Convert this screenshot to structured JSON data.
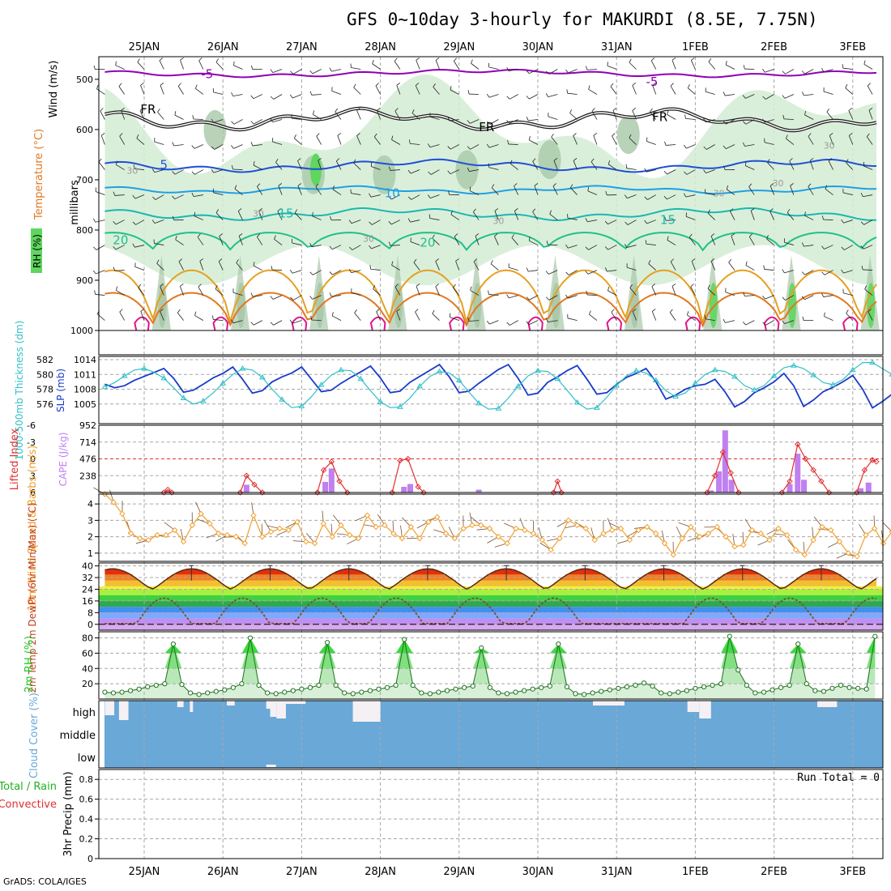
{
  "title": "GFS 0~10day 3-hourly for MAKURDI (8.5E, 7.75N)",
  "credit": "GrADS: COLA/IGES",
  "dates": [
    "25JAN",
    "26JAN",
    "27JAN",
    "28JAN",
    "29JAN",
    "30JAN",
    "31JAN",
    "1FEB",
    "2FEB",
    "3FEB"
  ],
  "colors": {
    "grid": "#a8a8a8",
    "rh_fill": "#d4ecd4",
    "rh_mid": "#a8c8a8",
    "rh_high": "#5fd65f",
    "temp_m5": "#8f00b6",
    "temp_fr": "#1a1a1a",
    "temp_5": "#1e50d6",
    "temp_10": "#1ea0e6",
    "temp_15": "#1ab8b0",
    "temp_20": "#20c08a",
    "temp_25": "#e6a020",
    "temp_30": "#e07820",
    "temp_35": "#e0148c",
    "slp": "#1a3cc8",
    "thickness": "#30c0c8",
    "cape": "#c080f0",
    "lifted": "#e03030",
    "wind10": "#f0a030",
    "rh2m": "#20c820",
    "cloud": "#6aa8d8",
    "dewpt": "#7a5030"
  },
  "chart_data": [
    {
      "panel": "upper-air",
      "type": "line",
      "ylabel_left": "RH (%)",
      "ylabel_mid": "Temperature (°C)",
      "ylabel_wind": "Wind (m/s)",
      "ylabel_units": "millibars",
      "y_ticks": [
        500,
        600,
        700,
        800,
        900,
        1000
      ],
      "ylim": [
        455,
        1000
      ],
      "contour_labels": [
        {
          "text": "-5",
          "x": 0.8,
          "y": 490
        },
        {
          "text": "-5",
          "x": 6.45,
          "y": 505
        },
        {
          "text": "FR",
          "x": 0.05,
          "y": 560
        },
        {
          "text": "FR",
          "x": 4.35,
          "y": 595
        },
        {
          "text": "FR",
          "x": 6.55,
          "y": 575
        },
        {
          "text": "5",
          "x": 0.25,
          "y": 670
        },
        {
          "text": "10",
          "x": 3.15,
          "y": 727
        },
        {
          "text": "15",
          "x": 1.8,
          "y": 767
        },
        {
          "text": "15",
          "x": 6.65,
          "y": 780
        },
        {
          "text": "20",
          "x": -0.3,
          "y": 820
        },
        {
          "text": "20",
          "x": 3.6,
          "y": 825
        },
        {
          "text": "30",
          "x": -0.15,
          "y": 680
        },
        {
          "text": "30",
          "x": 1.45,
          "y": 765
        },
        {
          "text": "30",
          "x": 2.85,
          "y": 815
        },
        {
          "text": "30",
          "x": 4.5,
          "y": 780
        },
        {
          "text": "30",
          "x": 7.3,
          "y": 725
        },
        {
          "text": "30",
          "x": 8.05,
          "y": 705
        },
        {
          "text": "30",
          "x": 8.7,
          "y": 630
        }
      ]
    },
    {
      "panel": "slp-thickness",
      "type": "line",
      "ylabel_left": "1000-500mb Thickness (dm)",
      "ylabel_right": "SLP (mb)",
      "left_ticks": [
        576,
        578,
        580,
        582
      ],
      "right_ticks": [
        1005,
        1008,
        1011,
        1014
      ],
      "slp_range": [
        1002,
        1014
      ],
      "slp": [
        1009,
        1008.3,
        1008.7,
        1009.8,
        1010.6,
        1011.4,
        1012.2,
        1010.2,
        1007.4,
        1007.8,
        1009,
        1010.3,
        1011.2,
        1012.5,
        1010,
        1007.2,
        1007.7,
        1009.5,
        1010.5,
        1011.3,
        1012.5,
        1010,
        1007.5,
        1007.8,
        1009.2,
        1010.4,
        1011.5,
        1012.7,
        1010.3,
        1007.3,
        1007.6,
        1009.4,
        1010.6,
        1011.8,
        1013,
        1010.5,
        1007.3,
        1007.6,
        1009.2,
        1010.6,
        1012,
        1013,
        1010.2,
        1006.8,
        1007.2,
        1009.4,
        1010.5,
        1011.8,
        1012.8,
        1010,
        1007,
        1007.3,
        1009,
        1010.4,
        1011.2,
        1012.2,
        1009.5,
        1006,
        1006.8,
        1008,
        1008.7,
        1009,
        1010,
        1007.5,
        1004.4,
        1005.5,
        1007.3,
        1008.3,
        1009.5,
        1011.2,
        1008.7,
        1004.5,
        1005.8,
        1007.5,
        1008.4,
        1009.5,
        1010.8,
        1008,
        1004.2,
        1005.5,
        1007,
        1009
      ],
      "thickness": [
        578.3,
        578.9,
        579.8,
        580.6,
        580.8,
        580.3,
        579.5,
        578.2,
        576.8,
        576.0,
        576.4,
        577.5,
        578.8,
        580.0,
        580.8,
        580.6,
        579.6,
        578.0,
        576.6,
        575.5,
        575.7,
        577.0,
        578.6,
        579.9,
        580.6,
        580.5,
        579.4,
        577.8,
        576.3,
        575.5,
        575.6,
        576.8,
        578.4,
        579.7,
        580.4,
        580.2,
        579.2,
        577.6,
        576.1,
        575.3,
        575.4,
        576.8,
        578.4,
        579.8,
        580.5,
        580.4,
        579.4,
        577.8,
        576.2,
        575.3,
        575.5,
        576.9,
        578.5,
        579.8,
        580.5,
        580.2,
        579.2,
        577.8,
        577.0,
        577.5,
        578.8,
        580.0,
        580.6,
        580.4,
        579.7,
        578.5,
        577.9,
        578.5,
        579.8,
        580.9,
        581.2,
        580.8,
        579.9,
        578.9,
        578.6,
        579.3,
        580.6,
        581.6,
        581.6,
        580.8,
        580.0,
        579.5
      ]
    },
    {
      "panel": "cape-lifted",
      "type": "bar",
      "ylabel_left": "Lifted Index",
      "ylabel_right": "CAPE (J/kg)",
      "li_ticks": [
        -6,
        -3,
        0,
        3,
        6
      ],
      "li_range": [
        -6,
        6
      ],
      "cape_ticks": [
        238,
        476,
        714,
        952
      ],
      "cape_range": [
        0,
        952
      ],
      "cape_bars": [
        {
          "x": 0.3,
          "v": 20
        },
        {
          "x": 1.3,
          "v": 110
        },
        {
          "x": 2.3,
          "v": 150
        },
        {
          "x": 2.38,
          "v": 340
        },
        {
          "x": 3.3,
          "v": 80
        },
        {
          "x": 3.38,
          "v": 120
        },
        {
          "x": 4.25,
          "v": 40
        },
        {
          "x": 5.25,
          "v": 20
        },
        {
          "x": 7.2,
          "v": 30
        },
        {
          "x": 7.3,
          "v": 300
        },
        {
          "x": 7.38,
          "v": 880
        },
        {
          "x": 7.46,
          "v": 180
        },
        {
          "x": 8.2,
          "v": 120
        },
        {
          "x": 8.3,
          "v": 550
        },
        {
          "x": 8.38,
          "v": 180
        },
        {
          "x": 9.1,
          "v": 60
        },
        {
          "x": 9.2,
          "v": 140
        }
      ],
      "li_segments": [
        [
          [
            0.25,
            6
          ],
          [
            0.3,
            5.5
          ],
          [
            0.35,
            6
          ]
        ],
        [
          [
            1.22,
            6
          ],
          [
            1.3,
            3
          ],
          [
            1.4,
            4.6
          ],
          [
            1.5,
            6
          ]
        ],
        [
          [
            2.2,
            6
          ],
          [
            2.28,
            2
          ],
          [
            2.38,
            0.5
          ],
          [
            2.48,
            4
          ],
          [
            2.58,
            6
          ]
        ],
        [
          [
            3.15,
            6
          ],
          [
            3.25,
            0.3
          ],
          [
            3.35,
            0
          ],
          [
            3.48,
            5
          ],
          [
            3.55,
            6
          ]
        ],
        [
          [
            5.2,
            6
          ],
          [
            5.25,
            4
          ],
          [
            5.3,
            6
          ]
        ],
        [
          [
            7.15,
            6
          ],
          [
            7.25,
            3
          ],
          [
            7.35,
            -1.2
          ],
          [
            7.45,
            2.5
          ],
          [
            7.55,
            6
          ]
        ],
        [
          [
            8.1,
            6
          ],
          [
            8.2,
            4
          ],
          [
            8.3,
            -2.6
          ],
          [
            8.4,
            0
          ],
          [
            8.5,
            2
          ],
          [
            8.6,
            4
          ],
          [
            8.7,
            6
          ]
        ],
        [
          [
            9.05,
            6
          ],
          [
            9.15,
            2
          ],
          [
            9.25,
            0.2
          ],
          [
            9.3,
            0.5
          ]
        ]
      ]
    },
    {
      "panel": "wind10m",
      "type": "line",
      "ylabel": "10m Wind Speed & Barbs (m/s)",
      "y_ticks": [
        1,
        2,
        3,
        4
      ],
      "ylim": [
        0.5,
        4.6
      ],
      "speed": [
        4.6,
        4.1,
        3.4,
        2.2,
        1.9,
        1.8,
        2.1,
        2.1,
        2.4,
        1.7,
        2.7,
        3.4,
        2.8,
        2.2,
        2.1,
        2.0,
        1.6,
        3.3,
        2.0,
        2.3,
        2.5,
        2.4,
        2.9,
        1.7,
        1.6,
        2.8,
        2.0,
        2.7,
        2.1,
        1.9,
        3.3,
        2.6,
        2.7,
        2.2,
        1.9,
        2.6,
        1.9,
        2.9,
        3.2,
        2.2,
        1.9,
        2.5,
        2.7,
        2.7,
        2.5,
        2.0,
        1.6,
        2.5,
        2.4,
        2.2,
        1.8,
        1.2,
        1.9,
        3.0,
        2.7,
        2.5,
        1.8,
        2.2,
        2.4,
        2.5,
        1.8,
        2.4,
        2.6,
        2.2,
        1.6,
        0.9,
        1.9,
        2.6,
        2.0,
        2.2,
        2.6,
        2.0,
        1.4,
        1.5,
        2.4,
        2.2,
        1.8,
        2.5,
        2.1,
        1.2,
        0.9,
        1.8,
        2.6,
        2.4,
        1.7,
        1.0,
        0.8,
        2.1,
        2.5,
        1.6,
        2.3
      ]
    },
    {
      "panel": "temp2m",
      "type": "line",
      "ylabel": "2m Temp 2m DewPt (6hr Min/Max) (°C)",
      "y_ticks": [
        0,
        8,
        16,
        24,
        32,
        40
      ],
      "ylim": [
        -4,
        42
      ],
      "temp_peaks": [
        0.6,
        1.6,
        2.6,
        3.6,
        4.6,
        5.6,
        6.6,
        7.6,
        8.6,
        9.6
      ],
      "dew_peaks": [
        0.25,
        1.25,
        2.25,
        3.2,
        4.2,
        5.2,
        7.2,
        8.2,
        9.25
      ]
    },
    {
      "panel": "rh2m",
      "type": "area",
      "ylabel": "2m RH (%)",
      "y_ticks": [
        20,
        40,
        60,
        80
      ],
      "ylim": [
        0,
        88
      ],
      "rh": [
        9,
        8,
        9,
        11,
        13,
        16,
        18,
        20,
        72,
        19,
        8,
        6,
        8,
        10,
        12,
        15,
        20,
        80,
        18,
        8,
        7,
        9,
        11,
        13,
        15,
        18,
        74,
        18,
        8,
        7,
        9,
        11,
        13,
        15,
        18,
        78,
        18,
        8,
        7,
        9,
        11,
        13,
        15,
        17,
        67,
        15,
        8,
        7,
        9,
        11,
        13,
        15,
        17,
        72,
        16,
        7,
        6,
        8,
        10,
        12,
        14,
        16,
        18,
        21,
        17,
        8,
        7,
        9,
        11,
        14,
        16,
        18,
        20,
        82,
        38,
        18,
        8,
        9,
        12,
        15,
        18,
        72,
        20,
        11,
        10,
        14,
        18,
        15,
        14,
        13,
        82
      ]
    },
    {
      "panel": "cloud",
      "type": "bar",
      "ylabel": "Cloud Cover (%)",
      "levels": [
        "high",
        "middle",
        "low"
      ]
    },
    {
      "panel": "precip",
      "type": "bar",
      "ylabel": "3hr Precip (mm)",
      "ylabel_total": "Total / Rain",
      "ylabel_conv": "Convective",
      "y_ticks": [
        "0",
        "0.2",
        "0.4",
        "0.6",
        "0.8"
      ],
      "ylim": [
        0,
        0.9
      ],
      "run_total": "Run Total = 0",
      "values": []
    }
  ]
}
